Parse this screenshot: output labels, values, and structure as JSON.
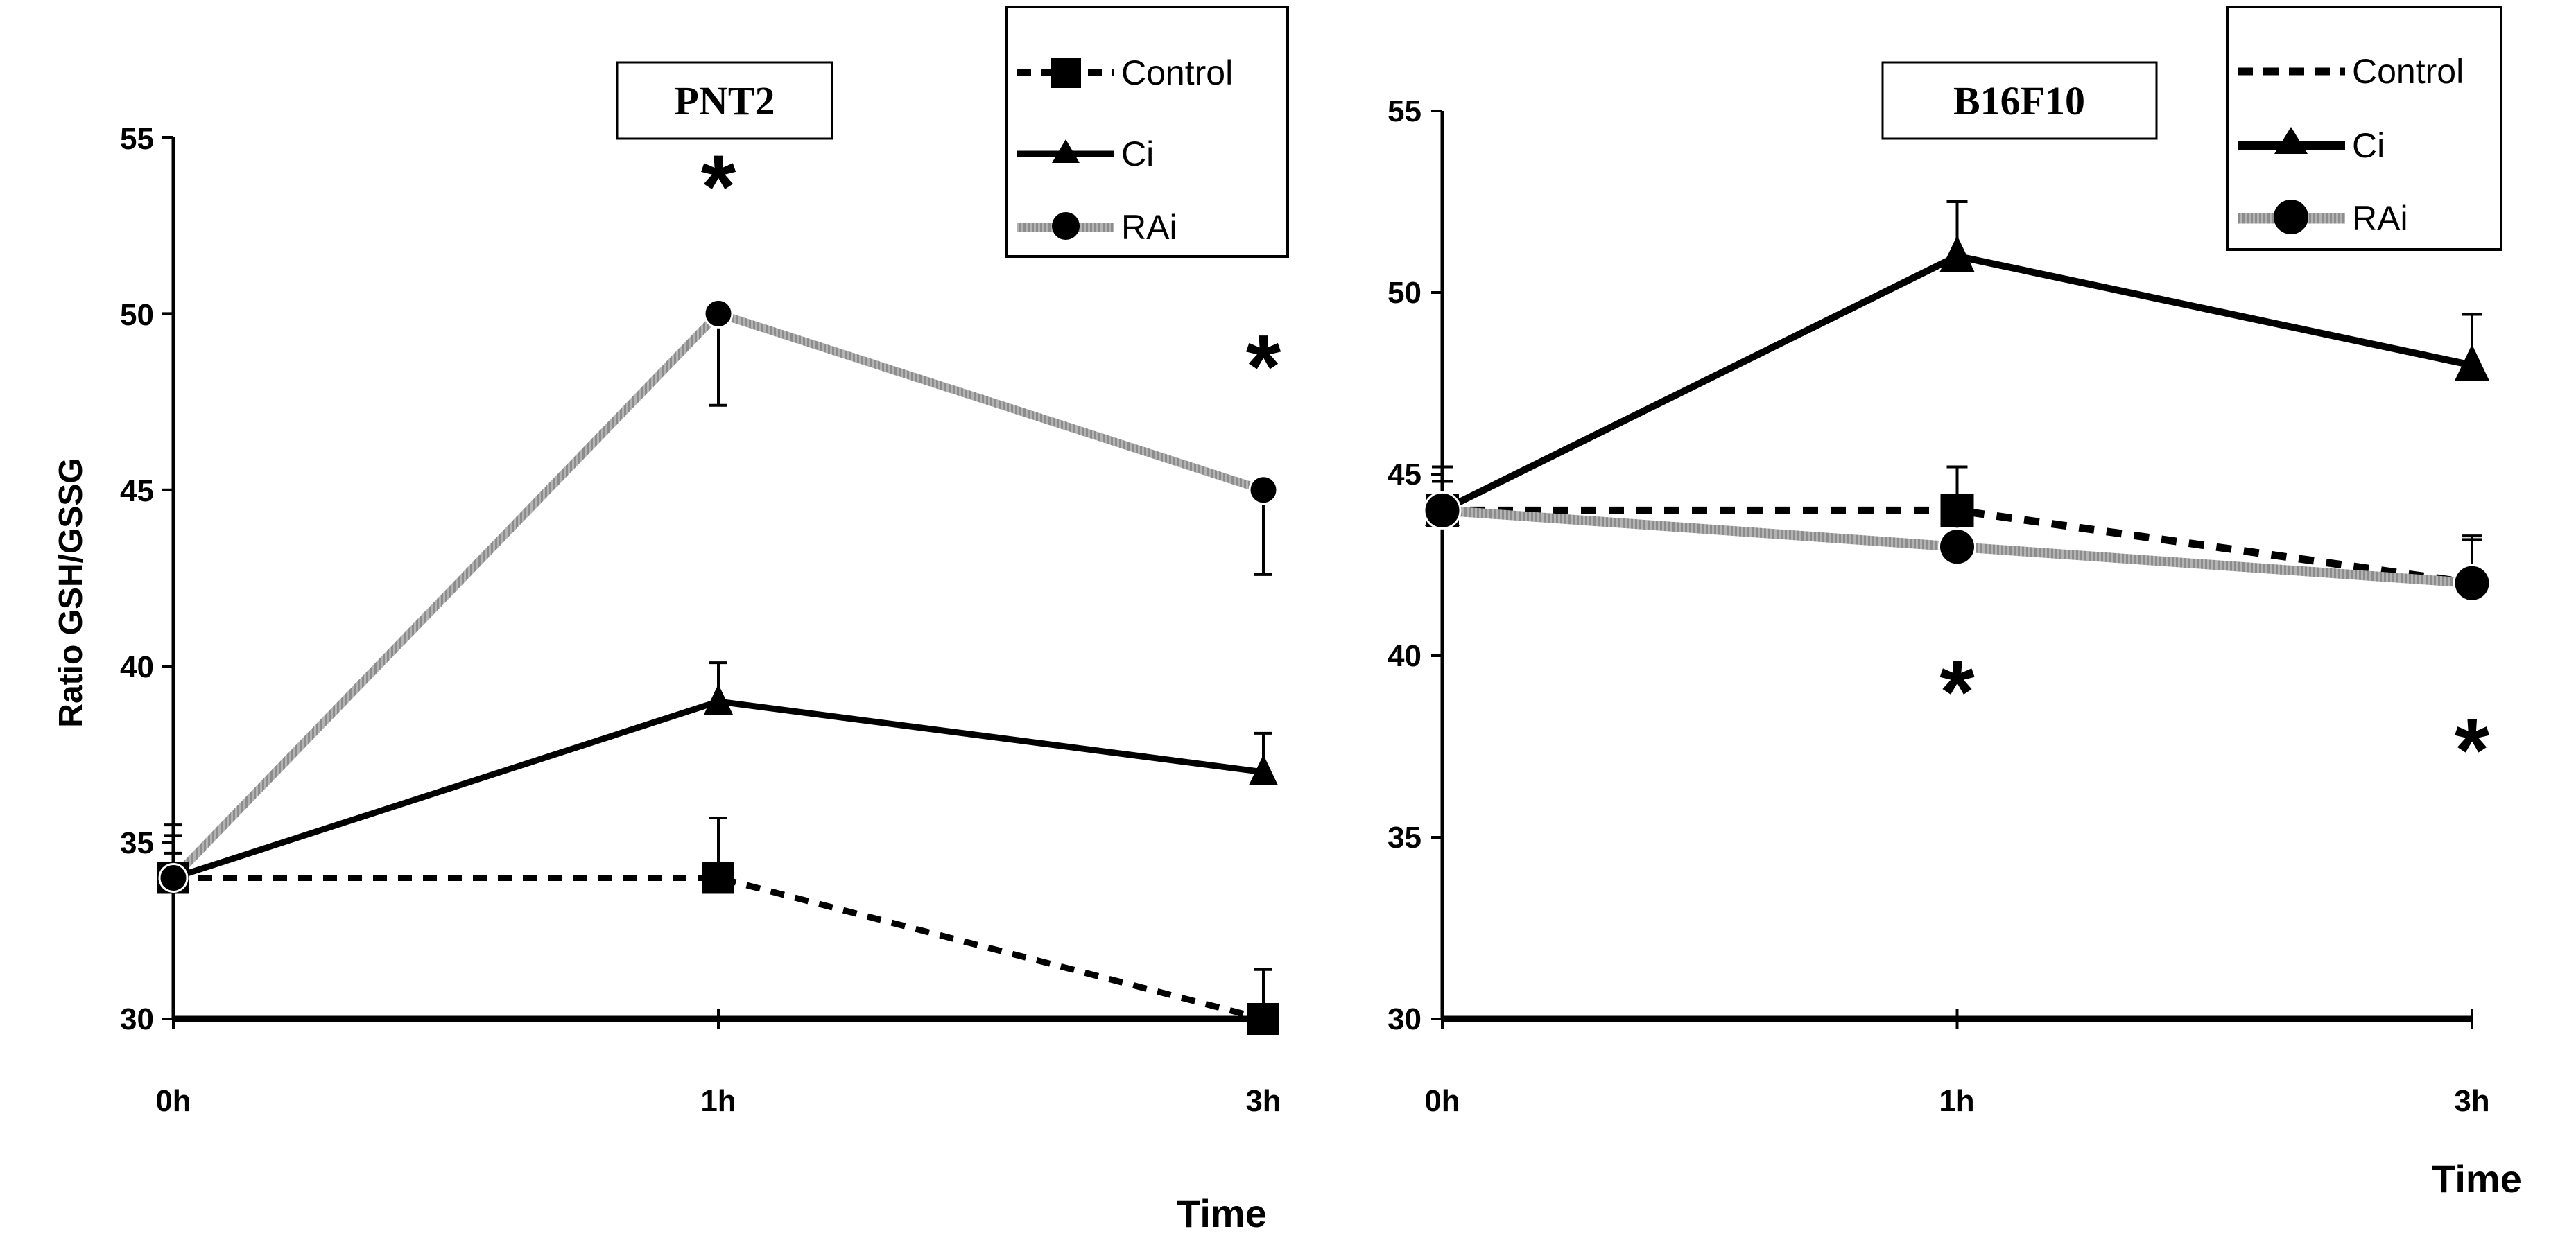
{
  "chart_data": [
    {
      "type": "line",
      "title": "PNT2",
      "xlabel": "Time",
      "ylabel": "Ratio GSH/GSSG",
      "categories": [
        "0h",
        "1h",
        "3h"
      ],
      "ylim": [
        30,
        55
      ],
      "yticks": [
        "30",
        "35",
        "40",
        "45",
        "50",
        "55"
      ],
      "series": [
        {
          "name": "Control",
          "values": [
            34,
            34,
            30
          ],
          "err": [
            1.5,
            1.7,
            1.4
          ]
        },
        {
          "name": "Ci",
          "values": [
            34,
            39,
            37
          ],
          "err": [
            1.2,
            1.1,
            1.1
          ]
        },
        {
          "name": "RAi",
          "values": [
            34,
            50,
            45
          ],
          "err": [
            0.7,
            2.6,
            2.4
          ]
        }
      ],
      "annotations": [
        {
          "text": "*",
          "category": "1h",
          "y": 53.8
        },
        {
          "text": "*",
          "category": "3h",
          "y": 48.7
        }
      ]
    },
    {
      "type": "line",
      "title": "B16F10",
      "xlabel": "Time",
      "ylabel": "",
      "categories": [
        "0h",
        "1h",
        "3h"
      ],
      "ylim": [
        30,
        55
      ],
      "yticks": [
        "30",
        "35",
        "40",
        "45",
        "50",
        "55"
      ],
      "series": [
        {
          "name": "Control",
          "values": [
            44,
            44,
            42
          ],
          "err": [
            1.2,
            1.2,
            1.2
          ]
        },
        {
          "name": "Ci",
          "values": [
            44,
            51,
            48
          ],
          "err": [
            1.2,
            1.5,
            1.4
          ]
        },
        {
          "name": "RAi",
          "values": [
            44,
            43,
            42
          ],
          "err": [
            0.8,
            0.6,
            1.3
          ]
        }
      ],
      "annotations": [
        {
          "text": "*",
          "category": "1h",
          "y": 39.2
        },
        {
          "text": "*",
          "category": "3h",
          "y": 37.6
        }
      ]
    }
  ]
}
